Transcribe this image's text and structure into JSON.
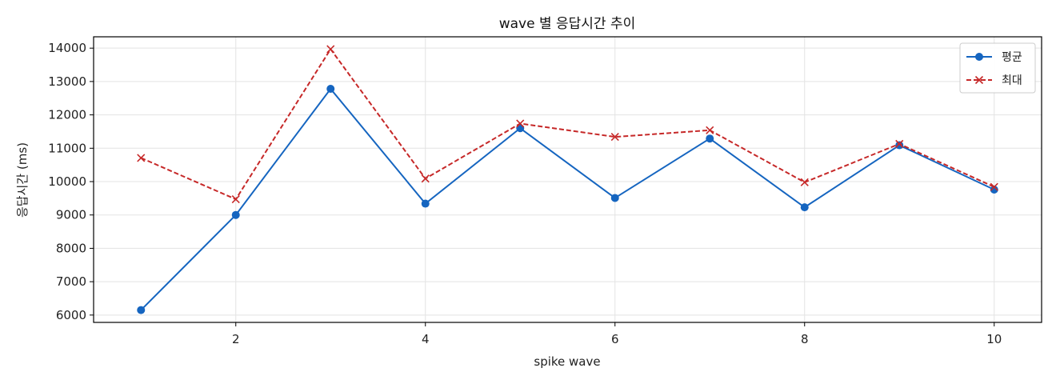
{
  "chart_data": {
    "type": "line",
    "title": "wave 별 응답시간 추이",
    "xlabel": "spike wave",
    "ylabel": "응답시간 (ms)",
    "x": [
      1,
      2,
      3,
      4,
      5,
      6,
      7,
      8,
      9,
      10
    ],
    "xlim": [
      0.5,
      10.5
    ],
    "ylim": [
      5780,
      14340
    ],
    "x_ticks": [
      2,
      4,
      6,
      8,
      10
    ],
    "y_ticks": [
      6000,
      7000,
      8000,
      9000,
      10000,
      11000,
      12000,
      13000,
      14000
    ],
    "grid": true,
    "legend_position": "top-right",
    "series": [
      {
        "name": "평균",
        "color": "#1565c0",
        "line_style": "solid",
        "marker": "circle",
        "values": [
          6150,
          9000,
          12780,
          9340,
          11600,
          9510,
          11290,
          9230,
          11090,
          9760
        ]
      },
      {
        "name": "최대",
        "color": "#c62828",
        "line_style": "dashed",
        "marker": "x",
        "values": [
          10710,
          9470,
          13970,
          10090,
          11740,
          11340,
          11540,
          9980,
          11130,
          9840
        ]
      }
    ]
  }
}
